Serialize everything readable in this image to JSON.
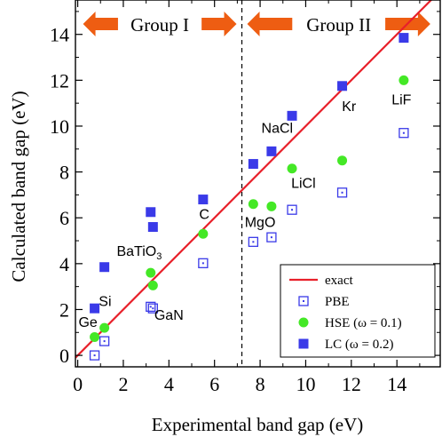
{
  "chart_data": {
    "type": "scatter",
    "xlabel": "Experimental band gap (eV)",
    "ylabel": "Calculated band gap (eV)",
    "xlim": [
      -0.1,
      15.9
    ],
    "ylim": [
      -0.5,
      15.5
    ],
    "xticks": [
      0,
      2,
      4,
      6,
      8,
      10,
      12,
      14
    ],
    "yticks": [
      0,
      2,
      4,
      6,
      8,
      10,
      12,
      14
    ],
    "xtick_labels": [
      "0",
      "2",
      "4",
      "6",
      "8",
      "10",
      "12",
      "14"
    ],
    "ytick_labels": [
      "0",
      "2",
      "4",
      "6",
      "8",
      "10",
      "12",
      "14"
    ],
    "divider_x": 7.2,
    "groups": [
      {
        "label": "Group I",
        "x_from": 0,
        "x_to": 7.2
      },
      {
        "label": "Group II",
        "x_from": 7.2,
        "x_to": 15.7
      }
    ],
    "reference_line": {
      "name": "exact",
      "color": "#e8202a",
      "x": [
        -0.1,
        15.9
      ],
      "y": [
        -0.1,
        15.9
      ]
    },
    "series": [
      {
        "name": "PBE",
        "marker": "open-square",
        "color": "#3a3ae8",
        "points": [
          {
            "x": 0.74,
            "y": 0.0
          },
          {
            "x": 1.17,
            "y": 0.62
          },
          {
            "x": 3.2,
            "y": 2.12
          },
          {
            "x": 3.3,
            "y": 2.05
          },
          {
            "x": 5.5,
            "y": 4.02
          },
          {
            "x": 7.7,
            "y": 4.95
          },
          {
            "x": 8.5,
            "y": 5.15
          },
          {
            "x": 9.4,
            "y": 6.35
          },
          {
            "x": 11.6,
            "y": 7.1
          },
          {
            "x": 14.3,
            "y": 9.7
          }
        ]
      },
      {
        "name": "HSE (ω = 0.1)",
        "marker": "filled-circle",
        "color": "#44e826",
        "points": [
          {
            "x": 0.74,
            "y": 0.8
          },
          {
            "x": 1.17,
            "y": 1.2
          },
          {
            "x": 3.2,
            "y": 3.6
          },
          {
            "x": 3.3,
            "y": 3.05
          },
          {
            "x": 5.5,
            "y": 5.3
          },
          {
            "x": 7.7,
            "y": 6.6
          },
          {
            "x": 8.5,
            "y": 6.5
          },
          {
            "x": 9.4,
            "y": 8.15
          },
          {
            "x": 11.6,
            "y": 8.5
          },
          {
            "x": 14.3,
            "y": 12.0
          }
        ]
      },
      {
        "name": "LC (ω = 0.2)",
        "marker": "filled-square",
        "color": "#3a3ae8",
        "points": [
          {
            "x": 0.74,
            "y": 2.05
          },
          {
            "x": 1.17,
            "y": 3.85
          },
          {
            "x": 3.2,
            "y": 6.25
          },
          {
            "x": 3.3,
            "y": 5.6
          },
          {
            "x": 5.5,
            "y": 6.8
          },
          {
            "x": 7.7,
            "y": 8.35
          },
          {
            "x": 8.5,
            "y": 8.9
          },
          {
            "x": 9.4,
            "y": 10.45
          },
          {
            "x": 11.6,
            "y": 11.75
          },
          {
            "x": 14.3,
            "y": 13.85
          }
        ]
      }
    ],
    "annotations": [
      {
        "text": "Ge",
        "x": 0.45,
        "y": 1.25
      },
      {
        "text": "Si",
        "x": 1.2,
        "y": 2.15
      },
      {
        "text": "BaTiO",
        "sub": "3",
        "x": 2.7,
        "y": 4.35
      },
      {
        "text": "GaN",
        "x": 4.0,
        "y": 1.55
      },
      {
        "text": "C",
        "x": 5.55,
        "y": 5.95
      },
      {
        "text": "MgO",
        "x": 8.0,
        "y": 5.6
      },
      {
        "text": "LiCl",
        "x": 9.9,
        "y": 7.3
      },
      {
        "text": "NaCl",
        "x": 8.75,
        "y": 9.7
      },
      {
        "text": "Kr",
        "x": 11.9,
        "y": 10.65
      },
      {
        "text": "LiF",
        "x": 14.2,
        "y": 10.95
      }
    ],
    "legend": {
      "position": "bottom-right",
      "entries": [
        "exact",
        "PBE",
        "HSE (ω = 0.1)",
        "LC (ω = 0.2)"
      ]
    },
    "colors": {
      "arrow": "#ee5d12",
      "axis": "#000000"
    }
  }
}
